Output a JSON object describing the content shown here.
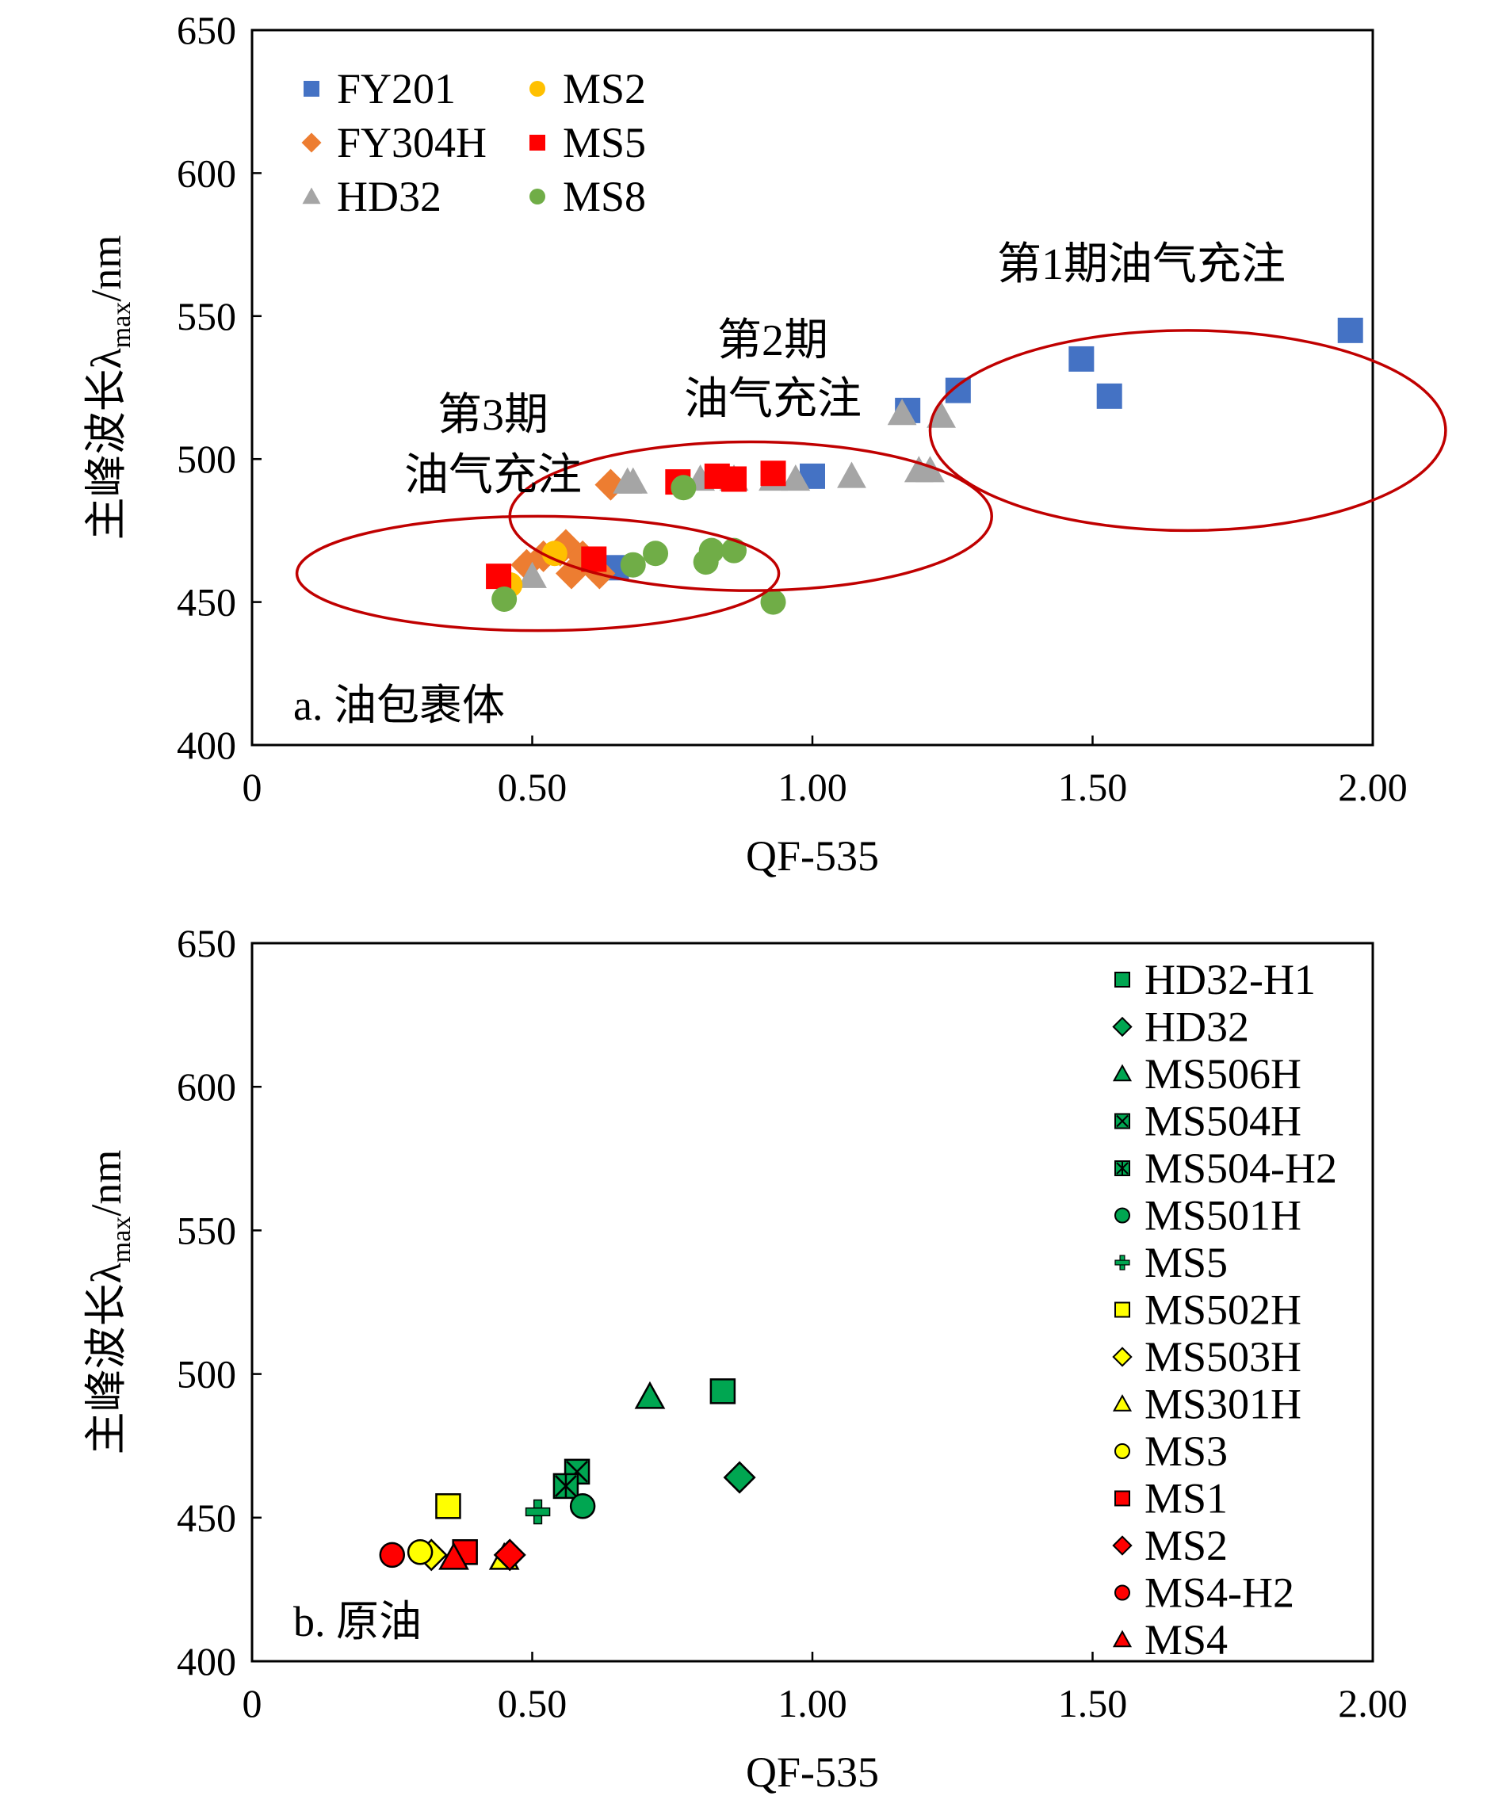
{
  "chart_data": [
    {
      "panel": "a",
      "type": "scatter",
      "panel_label": "a. 油包裹体",
      "xlabel": "QF-535",
      "ylabel": {
        "main": "主峰波长λ",
        "sub": "max",
        "unit": "/nm"
      },
      "xlim": [
        0,
        2.0
      ],
      "ylim": [
        400,
        650
      ],
      "x_ticks": [
        "0",
        "0.50",
        "1.00",
        "1.50",
        "2.00"
      ],
      "y_ticks": [
        "400",
        "450",
        "500",
        "550",
        "600",
        "650"
      ],
      "grid": false,
      "legend_position": "top-left",
      "series": [
        {
          "name": "FY201",
          "marker": "square",
          "color": "#4472C4",
          "points": [
            [
              0.65,
              462
            ],
            [
              1.0,
              494
            ],
            [
              1.17,
              517
            ],
            [
              1.26,
              524
            ],
            [
              1.48,
              535
            ],
            [
              1.53,
              522
            ],
            [
              1.96,
              545
            ]
          ]
        },
        {
          "name": "FY304H",
          "marker": "diamond",
          "color": "#ED7D31",
          "points": [
            [
              0.49,
              463
            ],
            [
              0.52,
              466
            ],
            [
              0.55,
              468
            ],
            [
              0.56,
              470
            ],
            [
              0.57,
              460
            ],
            [
              0.59,
              466
            ],
            [
              0.61,
              462
            ],
            [
              0.62,
              460
            ],
            [
              0.64,
              491
            ]
          ]
        },
        {
          "name": "HD32",
          "marker": "triangle",
          "color": "#A5A5A5",
          "points": [
            [
              0.5,
              459
            ],
            [
              0.67,
              492
            ],
            [
              0.68,
              492
            ],
            [
              0.8,
              493
            ],
            [
              0.86,
              493
            ],
            [
              0.93,
              493
            ],
            [
              0.97,
              493
            ],
            [
              1.07,
              494
            ],
            [
              1.16,
              516
            ],
            [
              1.19,
              496
            ],
            [
              1.21,
              496
            ],
            [
              1.23,
              515
            ]
          ]
        },
        {
          "name": "MS2",
          "marker": "circle",
          "color": "#FFC000",
          "points": [
            [
              0.46,
              456
            ],
            [
              0.54,
              467
            ]
          ]
        },
        {
          "name": "MS5",
          "marker": "square",
          "color": "#FF0000",
          "points": [
            [
              0.44,
              459
            ],
            [
              0.61,
              465
            ],
            [
              0.76,
              492
            ],
            [
              0.83,
              494
            ],
            [
              0.86,
              493
            ],
            [
              0.93,
              495
            ]
          ]
        },
        {
          "name": "MS8",
          "marker": "circle",
          "color": "#70AD47",
          "points": [
            [
              0.45,
              451
            ],
            [
              0.68,
              463
            ],
            [
              0.72,
              467
            ],
            [
              0.77,
              490
            ],
            [
              0.81,
              464
            ],
            [
              0.82,
              468
            ],
            [
              0.86,
              468
            ],
            [
              0.93,
              450
            ]
          ]
        }
      ],
      "annotations": [
        {
          "lines": [
            "第1期油气充注"
          ]
        },
        {
          "lines": [
            "第2期",
            "油气充注"
          ]
        },
        {
          "lines": [
            "第3期",
            "油气充注"
          ]
        }
      ],
      "ellipses": [
        {
          "cx": 1.67,
          "cy": 510,
          "rx": 0.46,
          "ry": 35
        },
        {
          "cx": 0.89,
          "cy": 480,
          "rx": 0.43,
          "ry": 26
        },
        {
          "cx": 0.51,
          "cy": 460,
          "rx": 0.43,
          "ry": 20
        }
      ]
    },
    {
      "panel": "b",
      "type": "scatter",
      "panel_label": "b. 原油",
      "xlabel": "QF-535",
      "ylabel": {
        "main": "主峰波长λ",
        "sub": "max",
        "unit": "/nm"
      },
      "xlim": [
        0,
        2.0
      ],
      "ylim": [
        400,
        650
      ],
      "x_ticks": [
        "0",
        "0.50",
        "1.00",
        "1.50",
        "2.00"
      ],
      "y_ticks": [
        "400",
        "450",
        "500",
        "550",
        "600",
        "650"
      ],
      "grid": false,
      "legend_position": "right",
      "series": [
        {
          "name": "HD32-H1",
          "marker": "square",
          "color": "#00A651",
          "points": [
            [
              0.84,
              494
            ]
          ]
        },
        {
          "name": "HD32",
          "marker": "diamond",
          "color": "#00A651",
          "points": [
            [
              0.87,
              464
            ]
          ]
        },
        {
          "name": "MS506H",
          "marker": "triangle",
          "color": "#00A651",
          "points": [
            [
              0.71,
              492
            ]
          ]
        },
        {
          "name": "MS504H",
          "marker": "x",
          "color": "#00A651",
          "points": [
            [
              0.58,
              466
            ]
          ]
        },
        {
          "name": "MS504-H2",
          "marker": "star",
          "color": "#00A651",
          "points": [
            [
              0.56,
              461
            ]
          ]
        },
        {
          "name": "MS501H",
          "marker": "circle",
          "color": "#00A651",
          "points": [
            [
              0.59,
              454
            ]
          ]
        },
        {
          "name": "MS5",
          "marker": "plus",
          "color": "#00A651",
          "points": [
            [
              0.51,
              452
            ]
          ]
        },
        {
          "name": "MS502H",
          "marker": "square",
          "color": "#FFFF00",
          "points": [
            [
              0.35,
              454
            ]
          ]
        },
        {
          "name": "MS503H",
          "marker": "diamond",
          "color": "#FFFF00",
          "points": [
            [
              0.32,
              437
            ]
          ]
        },
        {
          "name": "MS301H",
          "marker": "triangle",
          "color": "#FFFF00",
          "points": [
            [
              0.45,
              436
            ]
          ]
        },
        {
          "name": "MS3",
          "marker": "circle",
          "color": "#FFFF00",
          "points": [
            [
              0.3,
              438
            ]
          ]
        },
        {
          "name": "MS1",
          "marker": "square",
          "color": "#FF0000",
          "points": [
            [
              0.38,
              438
            ]
          ]
        },
        {
          "name": "MS2",
          "marker": "diamond",
          "color": "#FF0000",
          "points": [
            [
              0.46,
              437
            ]
          ]
        },
        {
          "name": "MS4-H2",
          "marker": "circle",
          "color": "#FF0000",
          "points": [
            [
              0.25,
              437
            ]
          ]
        },
        {
          "name": "MS4",
          "marker": "triangle",
          "color": "#FF0000",
          "points": [
            [
              0.36,
              436
            ]
          ]
        }
      ]
    }
  ]
}
